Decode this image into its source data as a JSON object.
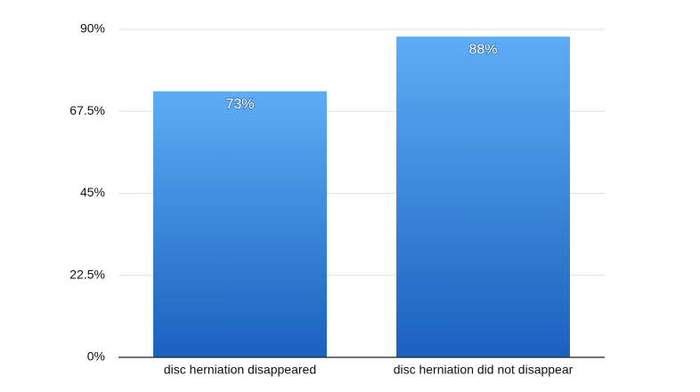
{
  "chart_data": {
    "type": "bar",
    "categories": [
      "disc herniation disappeared",
      "disc herniation did not disappear"
    ],
    "values": [
      73,
      88
    ],
    "value_labels": [
      "73%",
      "88%"
    ],
    "gradient": [
      "#5cadf5",
      "#1a61be"
    ],
    "ylim": [
      0,
      90
    ],
    "yticks": [
      {
        "value": 0,
        "label": "0%"
      },
      {
        "value": 22.5,
        "label": "22.5%"
      },
      {
        "value": 45,
        "label": "45%"
      },
      {
        "value": 67.5,
        "label": "67.5%"
      },
      {
        "value": 90,
        "label": "90%"
      }
    ],
    "grid": true
  }
}
